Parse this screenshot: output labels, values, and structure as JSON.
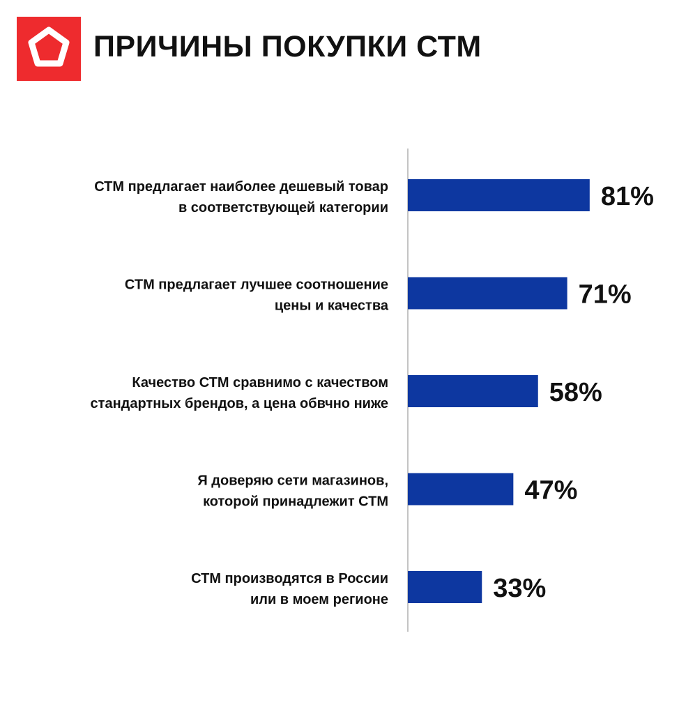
{
  "header": {
    "title": "ПРИЧИНЫ ПОКУПКИ СТМ",
    "logo_icon": "pentagon-logo-icon",
    "logo_color": "#EE2B2E"
  },
  "colors": {
    "bar": "#0D37A0",
    "axis": "#B0B0B0",
    "text": "#111111"
  },
  "chart_data": {
    "type": "bar",
    "orientation": "horizontal",
    "title": "ПРИЧИНЫ ПОКУПКИ СТМ",
    "categories": [
      [
        "СТМ предлагает наиболее дешевый товар",
        "в соответствующей категории"
      ],
      [
        "СТМ предлагает лучшее соотношение",
        "цены и качества"
      ],
      [
        "Качество СТМ сравнимо с качеством",
        "стандартных брендов, а цена обвчно ниже"
      ],
      [
        "Я доверяю сети магазинов,",
        "которой принадлежит СТМ"
      ],
      [
        "СТМ производятся в России",
        "или в моем регионе"
      ]
    ],
    "values": [
      81,
      71,
      58,
      47,
      33
    ],
    "value_labels": [
      "81%",
      "71%",
      "58%",
      "47%",
      "33%"
    ],
    "unit": "%",
    "xlim": [
      0,
      100
    ],
    "grid": false,
    "legend": "none"
  }
}
